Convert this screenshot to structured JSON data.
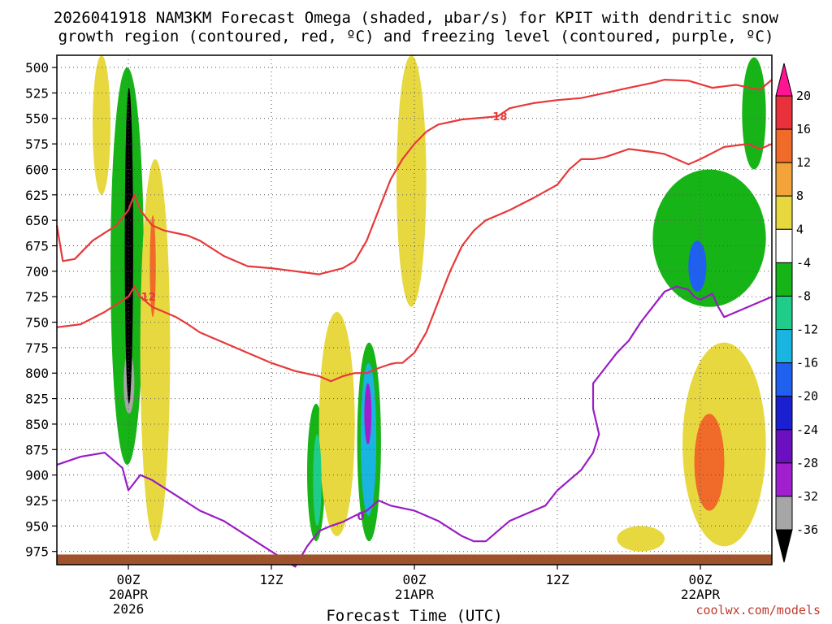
{
  "chart_data": {
    "type": "heatmap",
    "title_line1": "2026041918 NAM3KM Forecast Omega (shaded, μbar/s) for KPIT with dendritic snow",
    "title_line2": "growth region (contoured, red, ºC) and freezing level (contoured, purple, ºC)",
    "xlabel": "Forecast Time (UTC)",
    "credit": "coolwx.com/models",
    "y_ticks": [
      500,
      525,
      550,
      575,
      600,
      625,
      650,
      675,
      700,
      725,
      750,
      775,
      800,
      825,
      850,
      875,
      900,
      925,
      950,
      975
    ],
    "y_range": [
      488,
      988
    ],
    "x_range_hours": [
      -6,
      54
    ],
    "x_ticks": [
      {
        "hour": 0,
        "line1": "00Z",
        "line2": "20APR",
        "line3": "2026"
      },
      {
        "hour": 12,
        "line1": "12Z",
        "line2": "",
        "line3": ""
      },
      {
        "hour": 24,
        "line1": "00Z",
        "line2": "21APR",
        "line3": ""
      },
      {
        "hour": 36,
        "line1": "12Z",
        "line2": "",
        "line3": ""
      },
      {
        "hour": 48,
        "line1": "00Z",
        "line2": "22APR",
        "line3": ""
      }
    ],
    "colorbar": {
      "labels": [
        "20",
        "16",
        "12",
        "8",
        "4",
        "-4",
        "-8",
        "-12",
        "-16",
        "-20",
        "-24",
        "-28",
        "-32",
        "-36"
      ],
      "colors": [
        "#ff1493",
        "#e8313a",
        "#f06a2a",
        "#f2a33a",
        "#e8d840",
        "#ffffff",
        "#17b417",
        "#1fcc8a",
        "#1ab4e0",
        "#2060f0",
        "#1a20d0",
        "#6a10c0",
        "#a020d0",
        "#a6a6a6",
        "#000000"
      ]
    },
    "contours": [
      {
        "name": "dgz-18-upper",
        "color": "#e8383a",
        "label": "-18",
        "label_at": 31,
        "points": [
          [
            -6,
            655
          ],
          [
            -5.5,
            690
          ],
          [
            -4.5,
            688
          ],
          [
            -3,
            670
          ],
          [
            -1,
            655
          ],
          [
            0,
            640
          ],
          [
            0.5,
            625
          ],
          [
            1,
            640
          ],
          [
            2,
            655
          ],
          [
            3,
            660
          ],
          [
            5,
            665
          ],
          [
            6,
            670
          ],
          [
            8,
            685
          ],
          [
            10,
            695
          ],
          [
            12,
            697
          ],
          [
            14,
            700
          ],
          [
            16,
            703
          ],
          [
            17,
            700
          ],
          [
            18,
            697
          ],
          [
            19,
            690
          ],
          [
            20,
            670
          ],
          [
            21,
            640
          ],
          [
            22,
            610
          ],
          [
            23,
            590
          ],
          [
            24,
            575
          ],
          [
            25,
            563
          ],
          [
            26,
            556
          ],
          [
            28,
            551
          ],
          [
            30,
            549
          ],
          [
            31,
            548
          ],
          [
            32,
            540
          ],
          [
            34,
            535
          ],
          [
            36,
            532
          ],
          [
            38,
            530
          ],
          [
            40,
            525
          ],
          [
            42,
            520
          ],
          [
            44,
            515
          ],
          [
            45,
            512
          ],
          [
            47,
            513
          ],
          [
            49,
            520
          ],
          [
            51,
            517
          ],
          [
            53,
            522
          ],
          [
            54,
            512
          ]
        ]
      },
      {
        "name": "dgz-12-lower",
        "color": "#e8383a",
        "label": "-12",
        "label_at": 1.5,
        "points": [
          [
            -6,
            755
          ],
          [
            -4,
            752
          ],
          [
            -2,
            740
          ],
          [
            0,
            725
          ],
          [
            0.5,
            715
          ],
          [
            1,
            725
          ],
          [
            2,
            735
          ],
          [
            3,
            740
          ],
          [
            4,
            745
          ],
          [
            5,
            752
          ],
          [
            6,
            760
          ],
          [
            8,
            770
          ],
          [
            10,
            780
          ],
          [
            12,
            790
          ],
          [
            14,
            798
          ],
          [
            16,
            803
          ],
          [
            17,
            808
          ],
          [
            18,
            803
          ],
          [
            19,
            800
          ],
          [
            20,
            800
          ],
          [
            21,
            795
          ],
          [
            22,
            791
          ],
          [
            22.5,
            790
          ],
          [
            23,
            790
          ],
          [
            24,
            780
          ],
          [
            25,
            760
          ],
          [
            26,
            730
          ],
          [
            27,
            700
          ],
          [
            28,
            675
          ],
          [
            29,
            660
          ],
          [
            30,
            650
          ],
          [
            32,
            640
          ],
          [
            34,
            628
          ],
          [
            36,
            615
          ],
          [
            37,
            600
          ],
          [
            38,
            590
          ],
          [
            39,
            590
          ],
          [
            40,
            588
          ],
          [
            42,
            580
          ],
          [
            44,
            583
          ],
          [
            45,
            585
          ],
          [
            47,
            595
          ],
          [
            48,
            590
          ],
          [
            50,
            578
          ],
          [
            52,
            575
          ],
          [
            53,
            580
          ],
          [
            54,
            575
          ]
        ]
      },
      {
        "name": "freezing-0",
        "color": "#9a1cc4",
        "label": "0",
        "label_at": 19.5,
        "points": [
          [
            -6,
            890
          ],
          [
            -4,
            882
          ],
          [
            -2,
            878
          ],
          [
            -0.5,
            893
          ],
          [
            0,
            915
          ],
          [
            1,
            900
          ],
          [
            2,
            905
          ],
          [
            4,
            920
          ],
          [
            6,
            935
          ],
          [
            8,
            945
          ],
          [
            10,
            960
          ],
          [
            12,
            975
          ],
          [
            14,
            990
          ],
          [
            15,
            970
          ],
          [
            16,
            955
          ],
          [
            17,
            950
          ],
          [
            18,
            946
          ],
          [
            19,
            940
          ],
          [
            20,
            935
          ],
          [
            21,
            925
          ],
          [
            22,
            930
          ],
          [
            24,
            935
          ],
          [
            26,
            945
          ],
          [
            28,
            960
          ],
          [
            29,
            965
          ],
          [
            30,
            965
          ],
          [
            31,
            955
          ],
          [
            32,
            945
          ],
          [
            34,
            935
          ],
          [
            35,
            930
          ],
          [
            36,
            915
          ],
          [
            37,
            905
          ],
          [
            38,
            895
          ],
          [
            39,
            878
          ],
          [
            39.5,
            860
          ],
          [
            39,
            835
          ],
          [
            39,
            810
          ],
          [
            40,
            795
          ],
          [
            41,
            780
          ],
          [
            42,
            768
          ],
          [
            43,
            750
          ],
          [
            44,
            735
          ],
          [
            45,
            720
          ],
          [
            46,
            715
          ],
          [
            47,
            718
          ],
          [
            47.5,
            725
          ],
          [
            48,
            728
          ],
          [
            49,
            722
          ],
          [
            49.5,
            735
          ],
          [
            50,
            745
          ],
          [
            51,
            740
          ],
          [
            52,
            735
          ],
          [
            53,
            730
          ],
          [
            54,
            725
          ]
        ]
      }
    ],
    "shaded_regions": [
      {
        "name": "omega-neg-core",
        "color": "#000000",
        "x": [
          -0.3,
          0.4
        ],
        "p": [
          520,
          830
        ]
      },
      {
        "name": "omega-neg-grey",
        "color": "#a6a6a6",
        "x": [
          -0.4,
          0.5
        ],
        "p": [
          780,
          840
        ]
      },
      {
        "name": "omega-neg-purple-1",
        "color": "#a020d0",
        "x": [
          -0.6,
          0.5
        ],
        "p": [
          820,
          860
        ]
      },
      {
        "name": "omega-neg-blue-1",
        "color": "#1ab4e0",
        "x": [
          -0.9,
          0.8
        ],
        "p": [
          540,
          880
        ]
      },
      {
        "name": "omega-neg-green-1",
        "color": "#17b417",
        "x": [
          -1.5,
          1.3
        ],
        "p": [
          500,
          890
        ]
      },
      {
        "name": "omega-pos-orange-1",
        "color": "#f06a2a",
        "x": [
          1.8,
          2.3
        ],
        "p": [
          645,
          745
        ]
      },
      {
        "name": "omega-pos-yellow-1",
        "color": "#e8d840",
        "x": [
          1.0,
          3.5
        ],
        "p": [
          590,
          965
        ]
      },
      {
        "name": "omega-pos-yellow-2",
        "color": "#e8d840",
        "x": [
          -3.0,
          -1.5
        ],
        "p": [
          488,
          625
        ]
      },
      {
        "name": "omega-neg-green-2",
        "color": "#17b417",
        "x": [
          15.0,
          16.5
        ],
        "p": [
          830,
          965
        ]
      },
      {
        "name": "omega-neg-teal-2",
        "color": "#1fcc8a",
        "x": [
          15.5,
          16.2
        ],
        "p": [
          860,
          950
        ]
      },
      {
        "name": "omega-neg-green-3",
        "color": "#17b417",
        "x": [
          19.2,
          21.2
        ],
        "p": [
          770,
          965
        ]
      },
      {
        "name": "omega-neg-blue-3",
        "color": "#1ab4e0",
        "x": [
          19.5,
          20.8
        ],
        "p": [
          790,
          940
        ]
      },
      {
        "name": "omega-neg-purple-3",
        "color": "#a020d0",
        "x": [
          19.8,
          20.4
        ],
        "p": [
          810,
          870
        ]
      },
      {
        "name": "omega-pos-yellow-3",
        "color": "#e8d840",
        "x": [
          16.0,
          19.0
        ],
        "p": [
          740,
          960
        ]
      },
      {
        "name": "omega-pos-yellow-4",
        "color": "#e8d840",
        "x": [
          22.5,
          25.0
        ],
        "p": [
          488,
          735
        ]
      },
      {
        "name": "omega-neg-green-4",
        "color": "#17b417",
        "x": [
          44.0,
          53.5
        ],
        "p": [
          600,
          735
        ]
      },
      {
        "name": "omega-neg-green-5",
        "color": "#17b417",
        "x": [
          51.5,
          53.5
        ],
        "p": [
          490,
          600
        ]
      },
      {
        "name": "omega-neg-blue-5",
        "color": "#2060f0",
        "x": [
          47.0,
          48.5
        ],
        "p": [
          670,
          720
        ]
      },
      {
        "name": "omega-pos-yellow-5",
        "color": "#e8d840",
        "x": [
          46.5,
          53.5
        ],
        "p": [
          770,
          970
        ]
      },
      {
        "name": "omega-pos-orange-5",
        "color": "#f06a2a",
        "x": [
          47.5,
          50.0
        ],
        "p": [
          840,
          935
        ]
      },
      {
        "name": "omega-pos-yellow-6",
        "color": "#e8d840",
        "x": [
          41.0,
          45.0
        ],
        "p": [
          950,
          975
        ]
      }
    ],
    "ground": {
      "color": "#a0522d",
      "from_p": 978
    }
  }
}
